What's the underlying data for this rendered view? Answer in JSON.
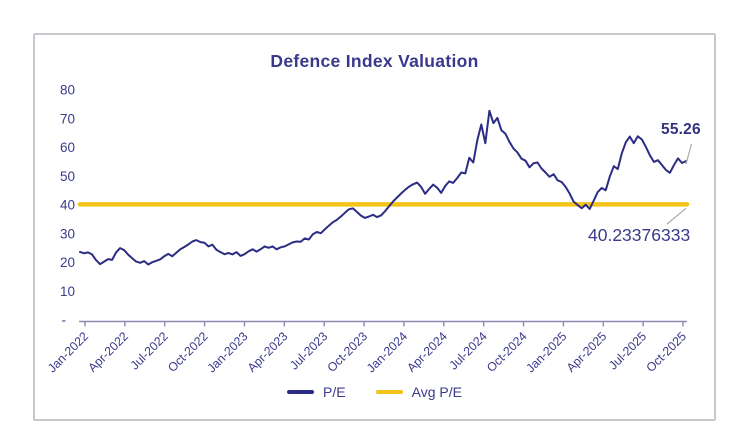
{
  "card": {
    "border_color": "#c6c8ce"
  },
  "colors": {
    "pe_line": "#2b2d84",
    "avg_line": "#f3c317",
    "text": "#3b3a8c",
    "title": "#39388d",
    "axis": "#8b89b4",
    "leader": "#a9a9ad",
    "annotation_bold": "#33327f"
  },
  "chart_data": {
    "type": "line",
    "title": "Defence Index Valuation",
    "xlabel": "",
    "ylabel": "",
    "ylim": [
      0,
      80
    ],
    "y_ticks": [
      0,
      10,
      20,
      30,
      40,
      50,
      60,
      70,
      80
    ],
    "y_zero_label": "-",
    "grid": "off",
    "legend_position": "bottom",
    "x_tick_labels": [
      "Jan-2022",
      "Apr-2022",
      "Jul-2022",
      "Oct-2022",
      "Jan-2023",
      "Apr-2023",
      "Jul-2023",
      "Oct-2023",
      "Jan-2024",
      "Apr-2024",
      "Jul-2024",
      "Oct-2024",
      "Jan-2025",
      "Apr-2025",
      "Jul-2025",
      "Oct-2025"
    ],
    "legend": [
      {
        "label": "P/E",
        "color": "#2b2d84"
      },
      {
        "label": "Avg P/E",
        "color": "#f3c317"
      }
    ],
    "series": [
      {
        "name": "P/E",
        "color": "#2b2d84",
        "x_start": "Jan-2022",
        "x_end": "Nov-2025",
        "last_value": 55.26,
        "values": [
          23.7,
          23.2,
          23.5,
          22.8,
          20.8,
          19.4,
          20.3,
          21.2,
          20.9,
          23.5,
          25.0,
          24.3,
          22.7,
          21.5,
          20.3,
          19.9,
          20.5,
          19.3,
          20.1,
          20.6,
          21.1,
          22.2,
          23.0,
          22.2,
          23.4,
          24.6,
          25.4,
          26.3,
          27.3,
          27.8,
          27.1,
          26.9,
          25.6,
          26.2,
          24.4,
          23.6,
          22.9,
          23.3,
          22.8,
          23.6,
          22.3,
          22.9,
          23.9,
          24.6,
          23.8,
          24.6,
          25.6,
          25.1,
          25.6,
          24.6,
          25.3,
          25.6,
          26.3,
          27.0,
          27.3,
          27.2,
          28.4,
          28.0,
          29.8,
          30.6,
          30.2,
          31.5,
          32.8,
          34.0,
          34.8,
          36.0,
          37.3,
          38.5,
          38.8,
          37.6,
          36.3,
          35.5,
          36.0,
          36.6,
          35.8,
          36.4,
          37.8,
          39.5,
          41.2,
          42.6,
          44.0,
          45.3,
          46.4,
          47.2,
          47.8,
          46.3,
          43.9,
          45.6,
          47.1,
          46.0,
          44.2,
          46.6,
          48.2,
          47.7,
          49.4,
          51.3,
          51.0,
          56.4,
          54.8,
          62.5,
          68.0,
          61.5,
          72.8,
          68.5,
          70.3,
          66.0,
          64.8,
          62.0,
          59.7,
          58.3,
          56.1,
          55.4,
          53.1,
          54.5,
          54.8,
          52.7,
          51.3,
          49.8,
          50.7,
          48.6,
          48.0,
          46.3,
          44.0,
          41.2,
          40.0,
          38.9,
          40.1,
          38.6,
          41.5,
          44.5,
          45.9,
          45.1,
          49.8,
          53.5,
          52.5,
          58.0,
          61.8,
          63.8,
          61.5,
          63.9,
          62.8,
          60.2,
          57.3,
          55.0,
          55.6,
          53.9,
          52.2,
          51.2,
          53.9,
          56.2,
          54.6,
          55.26
        ]
      },
      {
        "name": "Avg P/E",
        "color": "#f3c317",
        "avg_value": 40.23376333
      }
    ],
    "annotations": {
      "last_value_label": "55.26",
      "avg_value_label": "40.23376333"
    }
  }
}
